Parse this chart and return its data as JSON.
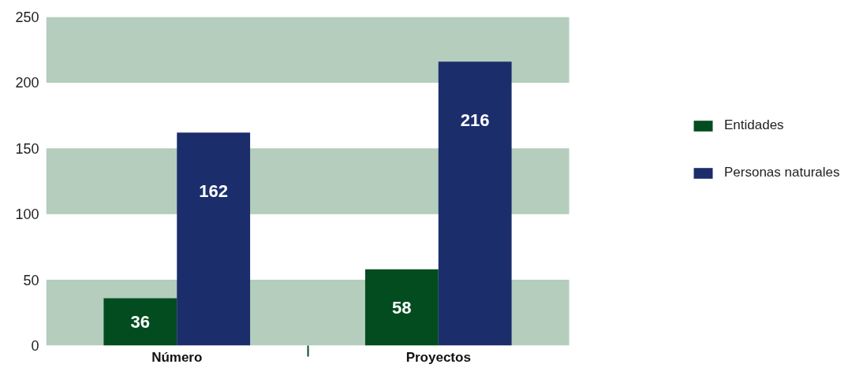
{
  "chart_data": {
    "type": "bar",
    "categories": [
      "Número",
      "Proyectos"
    ],
    "series": [
      {
        "name": "Entidades",
        "color": "#024c1f",
        "values": [
          36,
          58
        ]
      },
      {
        "name": "Personas naturales",
        "color": "#1b2d6b",
        "values": [
          162,
          216
        ]
      }
    ],
    "ylim": [
      0,
      250
    ],
    "yticks": [
      0,
      50,
      100,
      150,
      200,
      250
    ],
    "bands": [
      {
        "axis": "y",
        "from": 0,
        "to": 50,
        "color": "#b4cdbd"
      },
      {
        "axis": "y",
        "from": 100,
        "to": 150,
        "color": "#b4cdbd"
      },
      {
        "axis": "y",
        "from": 200,
        "to": 250,
        "color": "#b4cdbd"
      }
    ],
    "data_labels": true,
    "legend": "right"
  }
}
